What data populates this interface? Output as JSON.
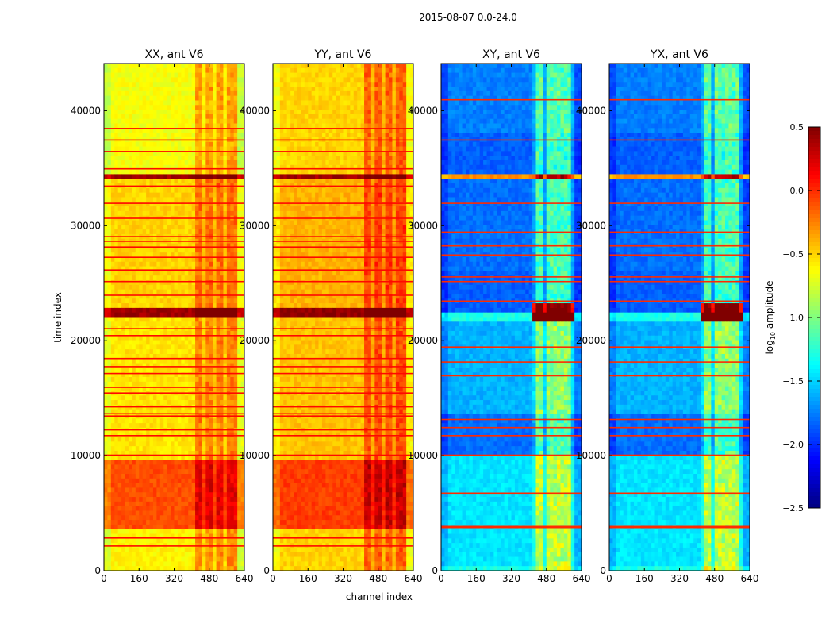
{
  "chart_data": {
    "type": "heatmap",
    "suptitle": "2015-08-07 0.0-24.0",
    "xlabel": "channel index",
    "ylabel": "time index",
    "xlim": [
      0,
      640
    ],
    "ylim": [
      0,
      44100
    ],
    "xticks": [
      "0",
      "160",
      "320",
      "480",
      "640"
    ],
    "xtick_values": [
      0,
      160,
      320,
      480,
      640
    ],
    "yticks": [
      "0",
      "10000",
      "20000",
      "30000",
      "40000"
    ],
    "ytick_values": [
      0,
      10000,
      20000,
      30000,
      40000
    ],
    "colormap": "jet",
    "colorbar": {
      "label_main": "log",
      "label_sub": "10",
      "label_rest": " amplitude",
      "vmin": -2.5,
      "vmax": 0.5,
      "ticks": [
        "0.5",
        "0.0",
        "−0.5",
        "−1.0",
        "−1.5",
        "−2.0",
        "−2.5"
      ],
      "tick_values": [
        0.5,
        0.0,
        -0.5,
        -1.0,
        -1.5,
        -2.0,
        -2.5
      ]
    },
    "panels": [
      {
        "title": "XX, ant V6",
        "segments": [
          [
            0,
            3800,
            -0.6
          ],
          [
            3800,
            9800,
            -0.1
          ],
          [
            9800,
            22000,
            -0.55
          ],
          [
            22000,
            23000,
            0.4
          ],
          [
            23000,
            34000,
            -0.5
          ],
          [
            34000,
            34500,
            0.4
          ],
          [
            34500,
            44100,
            -0.65
          ]
        ],
        "channel_band": [
          410,
          600,
          0.35
        ],
        "band_burst": [
          22000,
          23000,
          0.2
        ],
        "lines": [
          2200,
          2900,
          10100,
          11800,
          12300,
          13500,
          13700,
          14300,
          15500,
          16000,
          17200,
          17800,
          18500,
          20500,
          21100,
          24000,
          25200,
          26200,
          27300,
          28200,
          28700,
          29100,
          30700,
          32000,
          33500,
          35000,
          36500,
          37500,
          38500
        ],
        "line_value": 0.1
      },
      {
        "title": "YY, ant V6",
        "segments": [
          [
            0,
            3800,
            -0.5
          ],
          [
            3800,
            9800,
            -0.05
          ],
          [
            9800,
            22000,
            -0.45
          ],
          [
            22000,
            23000,
            0.45
          ],
          [
            23000,
            34000,
            -0.4
          ],
          [
            34000,
            34500,
            0.4
          ],
          [
            34500,
            44100,
            -0.5
          ]
        ],
        "channel_band": [
          410,
          600,
          0.4
        ],
        "band_burst": [
          22000,
          23000,
          0.2
        ],
        "lines": [
          2200,
          2900,
          10100,
          11800,
          12300,
          13500,
          13700,
          14300,
          15500,
          16000,
          17200,
          17800,
          18500,
          20500,
          21100,
          24000,
          25200,
          26200,
          27300,
          28200,
          28700,
          29100,
          30700,
          32000,
          33500,
          35000,
          36500,
          37500,
          38500
        ],
        "line_value": 0.1
      },
      {
        "title": "XY, ant V6",
        "segments": [
          [
            0,
            500,
            -1.3
          ],
          [
            500,
            10000,
            -1.45
          ],
          [
            10000,
            13500,
            -1.8
          ],
          [
            13500,
            21500,
            -1.6
          ],
          [
            21500,
            22500,
            -1.3
          ],
          [
            22500,
            26000,
            -1.85
          ],
          [
            26000,
            34000,
            -1.8
          ],
          [
            34000,
            34600,
            -0.3
          ],
          [
            34600,
            38000,
            -1.85
          ],
          [
            38000,
            44100,
            -1.75
          ]
        ],
        "channel_band": [
          420,
          600,
          0.75
        ],
        "band_burst": [
          21800,
          23200,
          1.8
        ],
        "lines": [
          3800,
          3900,
          6800,
          10100,
          11800,
          12500,
          13200,
          17000,
          18200,
          19500,
          23500,
          25200,
          25600,
          27500,
          28300,
          29500,
          32000,
          37500,
          41000
        ],
        "line_value": 0.0
      },
      {
        "title": "YX, ant V6",
        "segments": [
          [
            0,
            500,
            -1.3
          ],
          [
            500,
            10000,
            -1.45
          ],
          [
            10000,
            13500,
            -1.8
          ],
          [
            13500,
            21500,
            -1.6
          ],
          [
            21500,
            22500,
            -1.3
          ],
          [
            22500,
            26000,
            -1.85
          ],
          [
            26000,
            34000,
            -1.8
          ],
          [
            34000,
            34600,
            -0.3
          ],
          [
            34600,
            38000,
            -1.85
          ],
          [
            38000,
            44100,
            -1.75
          ]
        ],
        "channel_band": [
          420,
          600,
          0.75
        ],
        "band_burst": [
          21800,
          23200,
          1.8
        ],
        "lines": [
          3800,
          3900,
          6800,
          10100,
          11800,
          12500,
          13200,
          17000,
          18200,
          19500,
          23500,
          25200,
          25600,
          27500,
          28300,
          29500,
          32000,
          37500,
          41000
        ],
        "line_value": 0.0
      }
    ]
  }
}
